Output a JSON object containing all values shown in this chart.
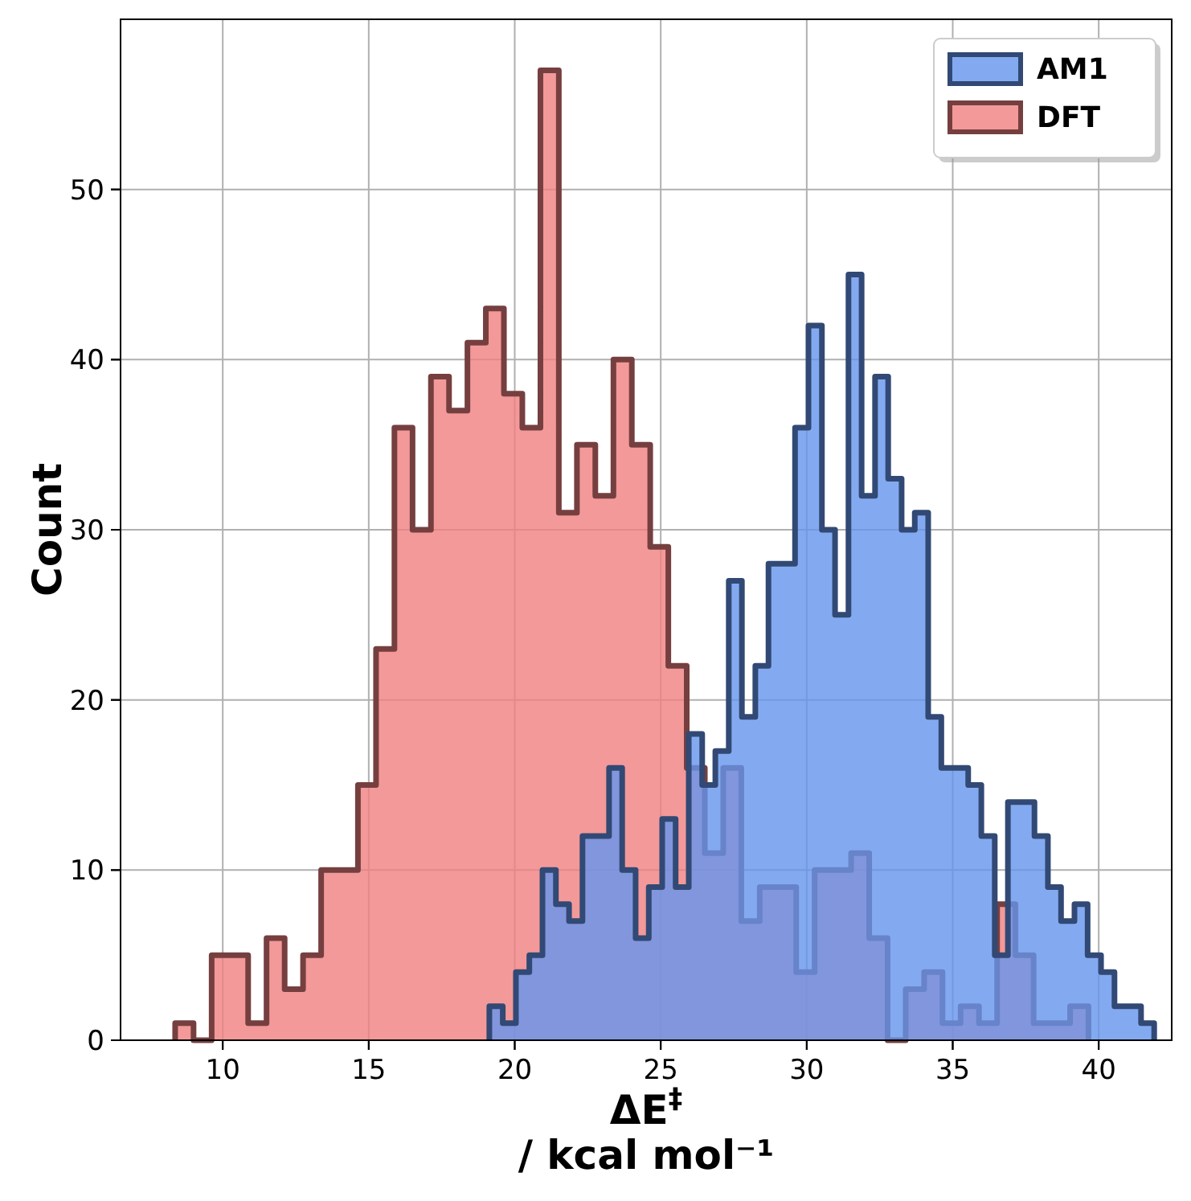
{
  "chart_data": [
    {
      "type": "histogram",
      "xlim": [
        6.5,
        42.5
      ],
      "ylim": [
        0,
        60
      ],
      "xticks": [
        10,
        15,
        20,
        25,
        30,
        35,
        40
      ],
      "yticks": [
        0,
        10,
        20,
        30,
        40,
        50
      ],
      "tick_labels": false,
      "legend": "top right",
      "bins": [
        19.13,
        19.59,
        20.04,
        20.5,
        20.95,
        21.41,
        21.86,
        22.32,
        22.77,
        23.23,
        23.68,
        24.14,
        24.59,
        25.05,
        25.51,
        25.96,
        26.42,
        26.87,
        27.33,
        27.78,
        28.24,
        28.69,
        29.15,
        29.6,
        30.06,
        30.52,
        30.97,
        31.43,
        31.88,
        32.34,
        32.79,
        33.25,
        33.7,
        34.16,
        34.61,
        35.07,
        35.53,
        35.98,
        36.44,
        36.89,
        37.35,
        37.8,
        38.26,
        38.71,
        39.17,
        39.62,
        40.08,
        40.54,
        40.99,
        41.45,
        41.9
      ],
      "series": [
        {
          "name": "AM1",
          "color": "#6495ed",
          "values": [
            2,
            1,
            4,
            5,
            10,
            8,
            7,
            12,
            12,
            16,
            10,
            6,
            9,
            13,
            9,
            18,
            15,
            17,
            27,
            19,
            22,
            28,
            28,
            36,
            42,
            30,
            25,
            45,
            32,
            39,
            33,
            30,
            31,
            19,
            16,
            16,
            15,
            12,
            5,
            14,
            14,
            12,
            9,
            7,
            8,
            5,
            4,
            2,
            2,
            1
          ]
        }
      ]
    },
    {
      "type": "histogram",
      "xlabel": "ΔE$^{‡}$\n/ kcal mol⁻¹",
      "ylabel": "Count",
      "xlim": [
        6.5,
        42.5
      ],
      "ylim": [
        0,
        60
      ],
      "xticks": [
        10,
        15,
        20,
        25,
        30,
        35,
        40
      ],
      "yticks": [
        0,
        10,
        20,
        30,
        40,
        50
      ],
      "grid": true,
      "legend": "top right",
      "bins": [
        8.37,
        9.0,
        9.62,
        10.25,
        10.87,
        11.5,
        12.12,
        12.75,
        13.37,
        14.0,
        14.63,
        15.25,
        15.88,
        16.5,
        17.13,
        17.75,
        18.38,
        19.01,
        19.63,
        20.26,
        20.88,
        21.51,
        22.13,
        22.76,
        23.38,
        24.01,
        24.64,
        25.26,
        25.89,
        26.51,
        27.14,
        27.76,
        28.39,
        29.02,
        29.64,
        30.27,
        30.89,
        31.52,
        32.14,
        32.77,
        33.39,
        34.02,
        34.65,
        35.27,
        35.9,
        36.52,
        37.15,
        37.77,
        38.4,
        39.02,
        39.65
      ],
      "series": [
        {
          "name": "DFT",
          "color": "#f08080",
          "values": [
            1,
            0,
            5,
            5,
            1,
            6,
            3,
            5,
            10,
            10,
            15,
            23,
            36,
            30,
            39,
            37,
            41,
            43,
            38,
            36,
            57,
            31,
            35,
            32,
            40,
            35,
            29,
            22,
            16,
            11,
            16,
            7,
            9,
            9,
            4,
            10,
            10,
            11,
            6,
            0,
            3,
            4,
            1,
            2,
            1,
            8,
            5,
            1,
            1,
            2
          ]
        }
      ]
    }
  ]
}
